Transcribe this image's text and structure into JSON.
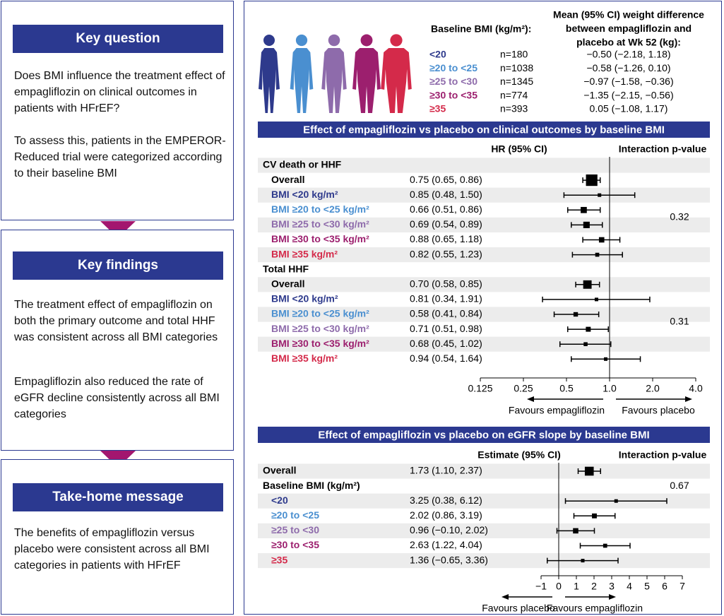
{
  "key_question": {
    "title": "Key question",
    "paragraphs": [
      "Does BMI influence the treatment effect of empagliflozin on clinical outcomes in patients with HFrEF?",
      "To assess this, patients in the EMPEROR-Reduced trial were categorized according to their baseline BMI"
    ]
  },
  "key_findings": {
    "title": "Key findings",
    "paragraphs": [
      "The treatment effect of empagliflozin on both the primary outcome and total HHF was consistent across all BMI categories",
      "Empagliflozin also reduced the rate of eGFR decline consistently across all BMI categories"
    ]
  },
  "take_home": {
    "title": "Take-home message",
    "paragraphs": [
      "The benefits of empagliflozin versus placebo were consistent across all BMI categories in patients with HFrEF"
    ]
  },
  "bmi_table": {
    "heading_bmi": "Baseline BMI (kg/m²):",
    "heading_weight": [
      "Mean (95% CI) weight difference",
      "between empagliflozin and",
      "placebo at Wk 52 (kg):"
    ],
    "rows": [
      {
        "category": "<20",
        "color": "#2e3a8c",
        "n": "n=180",
        "weight": "−0.50 (−2.18, 1.18)"
      },
      {
        "category": "≥20 to <25",
        "color": "#4a8fd0",
        "n": "n=1038",
        "weight": "−0.58 (−1.26, 0.10)"
      },
      {
        "category": "≥25 to <30",
        "color": "#8e6bab",
        "n": "n=1345",
        "weight": "−0.97 (−1.58, −0.36)"
      },
      {
        "category": "≥30 to <35",
        "color": "#9c1f6e",
        "n": "n=774",
        "weight": "−1.35 (−2.15, −0.56)"
      },
      {
        "category": "≥35",
        "color": "#d42a4a",
        "n": "n=393",
        "weight": "0.05 (−1.08, 1.17)"
      }
    ]
  },
  "chart_data": [
    {
      "type": "forest",
      "title": "Effect of empagliflozin vs placebo on clinical outcomes by baseline BMI",
      "column_header": "HR (95% CI)",
      "interaction_header": "Interaction p-value",
      "log_scale": true,
      "xlim": [
        0.125,
        4
      ],
      "reference_line": 1,
      "xticks": [
        0.125,
        0.25,
        0.5,
        {
          "value": 1,
          "label": "1.0"
        },
        {
          "value": 2,
          "label": "2.0"
        },
        {
          "value": 4,
          "label": "4.0"
        }
      ],
      "favours_left": "Favours empagliflozin",
      "favours_right": "Favours placebo",
      "groups": [
        {
          "label": "CV death or HHF",
          "interaction": 0.32,
          "rows": [
            {
              "label": "Overall",
              "color": "#000000",
              "value": 0.75,
              "lower": 0.65,
              "upper": 0.86,
              "value_label": "0.75 (0.65, 0.86)"
            },
            {
              "label": "BMI <20 kg/m²",
              "color": "#2e3a8c",
              "value": 0.85,
              "lower": 0.48,
              "upper": 1.5,
              "value_label": "0.85 (0.48, 1.50)"
            },
            {
              "label": "BMI ≥20 to <25 kg/m²",
              "color": "#4a8fd0",
              "value": 0.66,
              "lower": 0.51,
              "upper": 0.86,
              "value_label": "0.66 (0.51, 0.86)"
            },
            {
              "label": "BMI ≥25 to <30 kg/m²",
              "color": "#8e6bab",
              "value": 0.69,
              "lower": 0.54,
              "upper": 0.89,
              "value_label": "0.69 (0.54, 0.89)"
            },
            {
              "label": "BMI ≥30 to <35 kg/m²",
              "color": "#9c1f6e",
              "value": 0.88,
              "lower": 0.65,
              "upper": 1.18,
              "value_label": "0.88 (0.65, 1.18)"
            },
            {
              "label": "BMI ≥35 kg/m²",
              "color": "#d42a4a",
              "value": 0.82,
              "lower": 0.55,
              "upper": 1.23,
              "value_label": "0.82 (0.55, 1.23)"
            }
          ]
        },
        {
          "label": "Total HHF",
          "interaction": 0.31,
          "rows": [
            {
              "label": "Overall",
              "color": "#000000",
              "value": 0.7,
              "lower": 0.58,
              "upper": 0.85,
              "value_label": "0.70 (0.58, 0.85)"
            },
            {
              "label": "BMI <20 kg/m²",
              "color": "#2e3a8c",
              "value": 0.81,
              "lower": 0.34,
              "upper": 1.91,
              "value_label": "0.81 (0.34, 1.91)"
            },
            {
              "label": "BMI ≥20 to <25 kg/m²",
              "color": "#4a8fd0",
              "value": 0.58,
              "lower": 0.41,
              "upper": 0.84,
              "value_label": "0.58 (0.41, 0.84)"
            },
            {
              "label": "BMI ≥25 to <30 kg/m²",
              "color": "#8e6bab",
              "value": 0.71,
              "lower": 0.51,
              "upper": 0.98,
              "value_label": "0.71 (0.51, 0.98)"
            },
            {
              "label": "BMI ≥30 to <35 kg/m²",
              "color": "#9c1f6e",
              "value": 0.68,
              "lower": 0.45,
              "upper": 1.02,
              "value_label": "0.68 (0.45, 1.02)"
            },
            {
              "label": "BMI ≥35 kg/m²",
              "color": "#d42a4a",
              "value": 0.94,
              "lower": 0.54,
              "upper": 1.64,
              "value_label": "0.94 (0.54, 1.64)"
            }
          ]
        }
      ]
    },
    {
      "type": "forest",
      "title": "Effect of empagliflozin vs placebo on eGFR slope by baseline BMI",
      "column_header": "Estimate (95% CI)",
      "interaction_header": "Interaction p-value",
      "log_scale": false,
      "xlim": [
        -1,
        7
      ],
      "reference_line": 0,
      "xticks": [
        {
          "value": -1,
          "label": "−1"
        },
        0,
        1,
        2,
        3,
        4,
        5,
        6,
        7
      ],
      "favours_left": "Favours placebo",
      "favours_right": "Favours empagliflozin",
      "groups": [
        {
          "rows": [
            {
              "label": "Overall",
              "color": "#000000",
              "value": 1.73,
              "lower": 1.1,
              "upper": 2.37,
              "value_label": "1.73 (1.10, 2.37)"
            }
          ]
        },
        {
          "label": "Baseline BMI (kg/m²)",
          "interaction": 0.67,
          "rows": [
            {
              "label": "<20",
              "color": "#2e3a8c",
              "value": 3.25,
              "lower": 0.38,
              "upper": 6.12,
              "value_label": "3.25 (0.38, 6.12)"
            },
            {
              "label": "≥20 to <25",
              "color": "#4a8fd0",
              "value": 2.02,
              "lower": 0.86,
              "upper": 3.19,
              "value_label": "2.02 (0.86, 3.19)"
            },
            {
              "label": "≥25 to <30",
              "color": "#8e6bab",
              "value": 0.96,
              "lower": -0.1,
              "upper": 2.02,
              "value_label": "0.96 (−0.10, 2.02)"
            },
            {
              "label": "≥30 to <35",
              "color": "#9c1f6e",
              "value": 2.63,
              "lower": 1.22,
              "upper": 4.04,
              "value_label": "2.63 (1.22, 4.04)"
            },
            {
              "label": "≥35",
              "color": "#d42a4a",
              "value": 1.36,
              "lower": -0.65,
              "upper": 3.36,
              "value_label": "1.36 (−0.65, 3.36)"
            }
          ]
        }
      ]
    }
  ]
}
